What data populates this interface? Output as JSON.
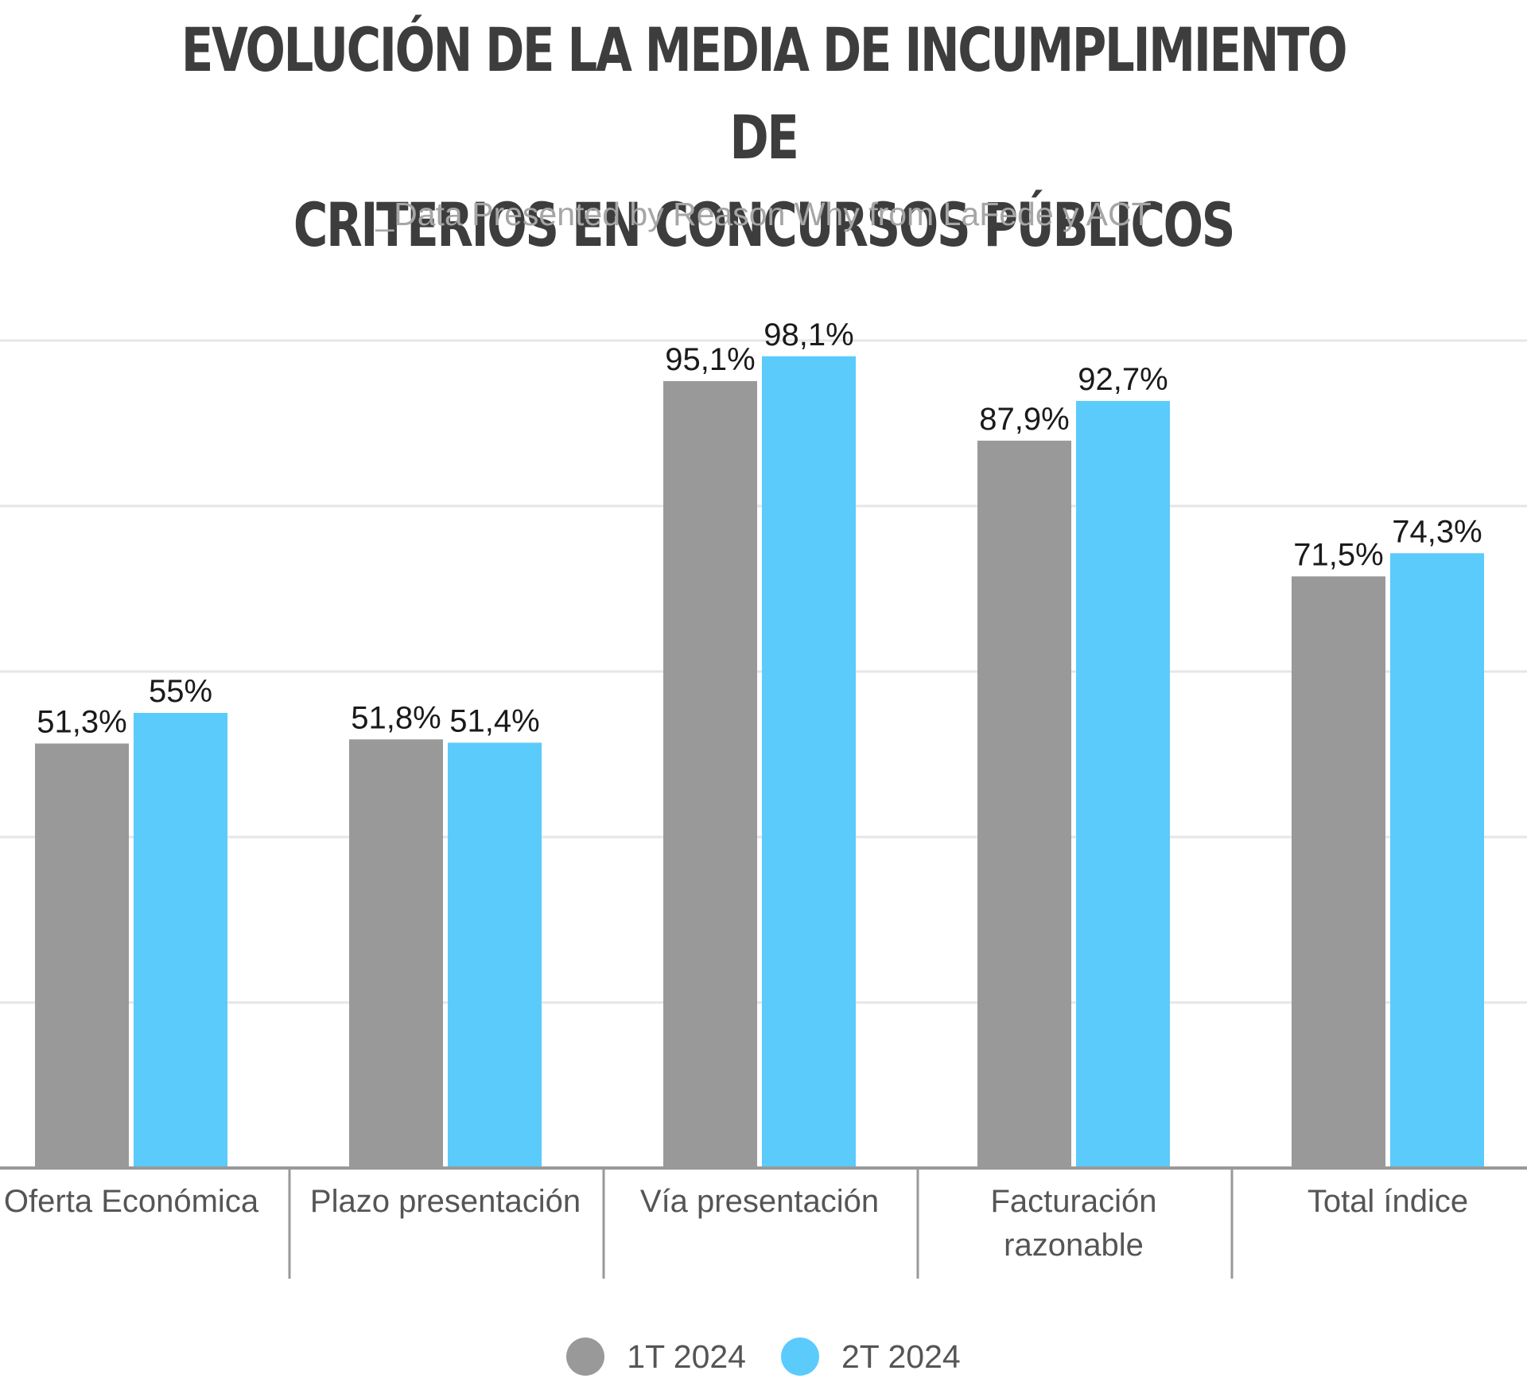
{
  "title_lines": [
    "EVOLUCIÓN DE LA MEDIA DE INCUMPLIMIENTO DE",
    "CRITERIOS EN CONCURSOS PÚBLICOS"
  ],
  "subtitle": "_Data Presented by Reason Why from LaFede y ACT",
  "chart_data": {
    "type": "bar",
    "title": "EVOLUCIÓN DE LA MEDIA DE INCUMPLIMIENTO DE CRITERIOS EN CONCURSOS PÚBLICOS",
    "subtitle": "_Data Presented by Reason Why from LaFede y ACT",
    "categories": [
      [
        "Oferta Económica"
      ],
      [
        "Plazo presentación"
      ],
      [
        "Vía presentación"
      ],
      [
        "Facturación",
        "razonable"
      ],
      [
        "Total índice"
      ]
    ],
    "series": [
      {
        "name": "1T 2024",
        "color": "#999999",
        "values": [
          51.3,
          51.8,
          95.1,
          87.9,
          71.5
        ],
        "labels": [
          "51,3%",
          "51,8%",
          "95,1%",
          "87,9%",
          "71,5%"
        ]
      },
      {
        "name": "2T 2024",
        "color": "#5bcbfb",
        "values": [
          55,
          51.4,
          98.1,
          92.7,
          74.3
        ],
        "labels": [
          "55%",
          "51,4%",
          "98,1%",
          "92,7%",
          "74,3%"
        ]
      }
    ],
    "ylim": [
      0,
      100
    ],
    "grid": true,
    "legend_position": "bottom-center",
    "xlabel": "",
    "ylabel": ""
  }
}
